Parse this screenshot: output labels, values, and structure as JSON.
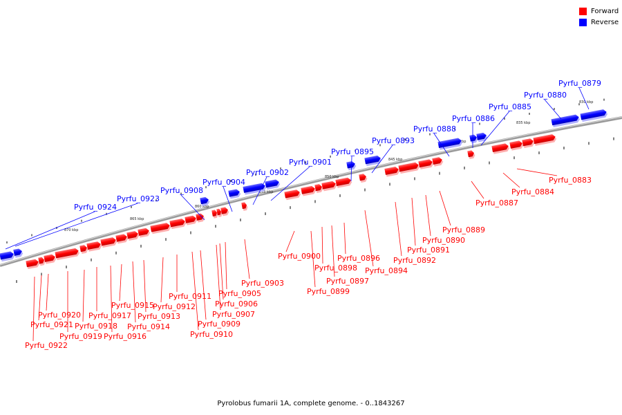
{
  "caption": "Pyrolobus fumarii 1A, complete genome. - 0..1843267",
  "legend": [
    {
      "label": "Forward",
      "color": "#ff0000"
    },
    {
      "label": "Reverse",
      "color": "#0000ff"
    }
  ],
  "colors": {
    "forward": "#ff0000",
    "reverse": "#0000ff",
    "backbone": "#808080"
  },
  "scale_labels": [
    "870 kbp",
    "865 kbp",
    "860 kbp",
    "855 kbp",
    "850 kbp",
    "845 kbp",
    "840 kbp",
    "835 kbp",
    "830 kbp"
  ],
  "forward_genes": [
    "Pyrfu_0922",
    "Pyrfu_0921",
    "Pyrfu_0920",
    "Pyrfu_0919",
    "Pyrfu_0918",
    "Pyrfu_0917",
    "Pyrfu_0916",
    "Pyrfu_0915",
    "Pyrfu_0914",
    "Pyrfu_0913",
    "Pyrfu_0912",
    "Pyrfu_0911",
    "Pyrfu_0910",
    "Pyrfu_0909",
    "Pyrfu_0907",
    "Pyrfu_0906",
    "Pyrfu_0905",
    "Pyrfu_0903",
    "Pyrfu_0900",
    "Pyrfu_0899",
    "Pyrfu_0898",
    "Pyrfu_0897",
    "Pyrfu_0896",
    "Pyrfu_0894",
    "Pyrfu_0892",
    "Pyrfu_0891",
    "Pyrfu_0890",
    "Pyrfu_0889",
    "Pyrfu_0887",
    "Pyrfu_0884",
    "Pyrfu_0883"
  ],
  "reverse_genes": [
    "Pyrfu_0924",
    "Pyrfu_0923",
    "Pyrfu_0908",
    "Pyrfu_0904",
    "Pyrfu_0902",
    "Pyrfu_0901",
    "Pyrfu_0895",
    "Pyrfu_0893",
    "Pyrfu_0888",
    "Pyrfu_0886",
    "Pyrfu_0885",
    "Pyrfu_0880",
    "Pyrfu_0879"
  ]
}
